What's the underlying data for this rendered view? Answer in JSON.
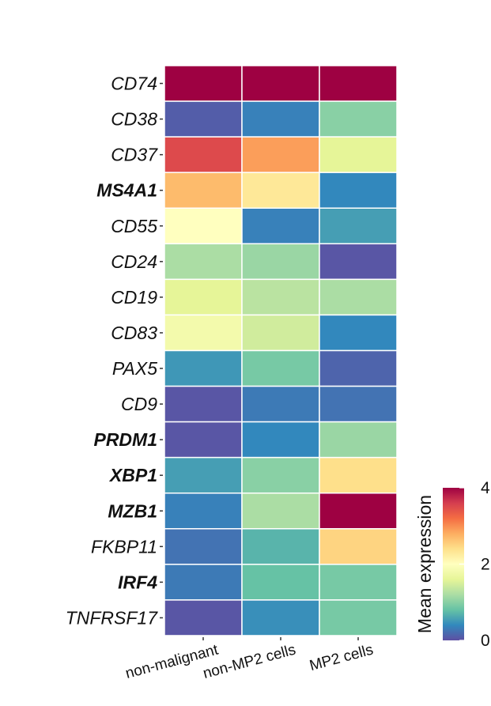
{
  "chart_data": {
    "type": "heatmap",
    "title": "",
    "xlabel": "",
    "ylabel": "",
    "columns": [
      "non-malignant",
      "non-MP2 cells",
      "MP2 cells"
    ],
    "rows": [
      {
        "name": "CD74",
        "bold": false,
        "values": [
          4.0,
          4.0,
          4.0
        ]
      },
      {
        "name": "CD38",
        "bold": false,
        "values": [
          0.1,
          0.35,
          1.0
        ]
      },
      {
        "name": "CD37",
        "bold": false,
        "values": [
          3.5,
          2.9,
          1.6
        ]
      },
      {
        "name": "MS4A1",
        "bold": true,
        "values": [
          2.7,
          2.3,
          0.4
        ]
      },
      {
        "name": "CD55",
        "bold": false,
        "values": [
          2.0,
          0.35,
          0.55
        ]
      },
      {
        "name": "CD24",
        "bold": false,
        "values": [
          1.2,
          1.1,
          0.05
        ]
      },
      {
        "name": "CD19",
        "bold": false,
        "values": [
          1.6,
          1.3,
          1.2
        ]
      },
      {
        "name": "CD83",
        "bold": false,
        "values": [
          1.8,
          1.45,
          0.4
        ]
      },
      {
        "name": "PAX5",
        "bold": false,
        "values": [
          0.5,
          0.9,
          0.15
        ]
      },
      {
        "name": "CD9",
        "bold": false,
        "values": [
          0.05,
          0.3,
          0.25
        ]
      },
      {
        "name": "PRDM1",
        "bold": true,
        "values": [
          0.05,
          0.4,
          1.1
        ]
      },
      {
        "name": "XBP1",
        "bold": true,
        "values": [
          0.55,
          1.0,
          2.4
        ]
      },
      {
        "name": "MZB1",
        "bold": true,
        "values": [
          0.35,
          1.2,
          4.0
        ]
      },
      {
        "name": "FKBP11",
        "bold": false,
        "values": [
          0.25,
          0.7,
          2.5
        ]
      },
      {
        "name": "IRF4",
        "bold": true,
        "values": [
          0.3,
          0.8,
          0.9
        ]
      },
      {
        "name": "TNFRSF17",
        "bold": false,
        "values": [
          0.05,
          0.45,
          0.9
        ]
      }
    ],
    "colorbar": {
      "title": "Mean expression",
      "min": 0,
      "max": 4,
      "ticks": [
        "0",
        "2",
        "4"
      ],
      "colors": [
        "#5E4FA2",
        "#3288BD",
        "#66C2A5",
        "#ABDDA4",
        "#E6F598",
        "#FFFFBF",
        "#FEE08B",
        "#FDAE61",
        "#F46D43",
        "#D53E4F",
        "#9E0142"
      ]
    },
    "grid": true,
    "legend_position": "right"
  }
}
